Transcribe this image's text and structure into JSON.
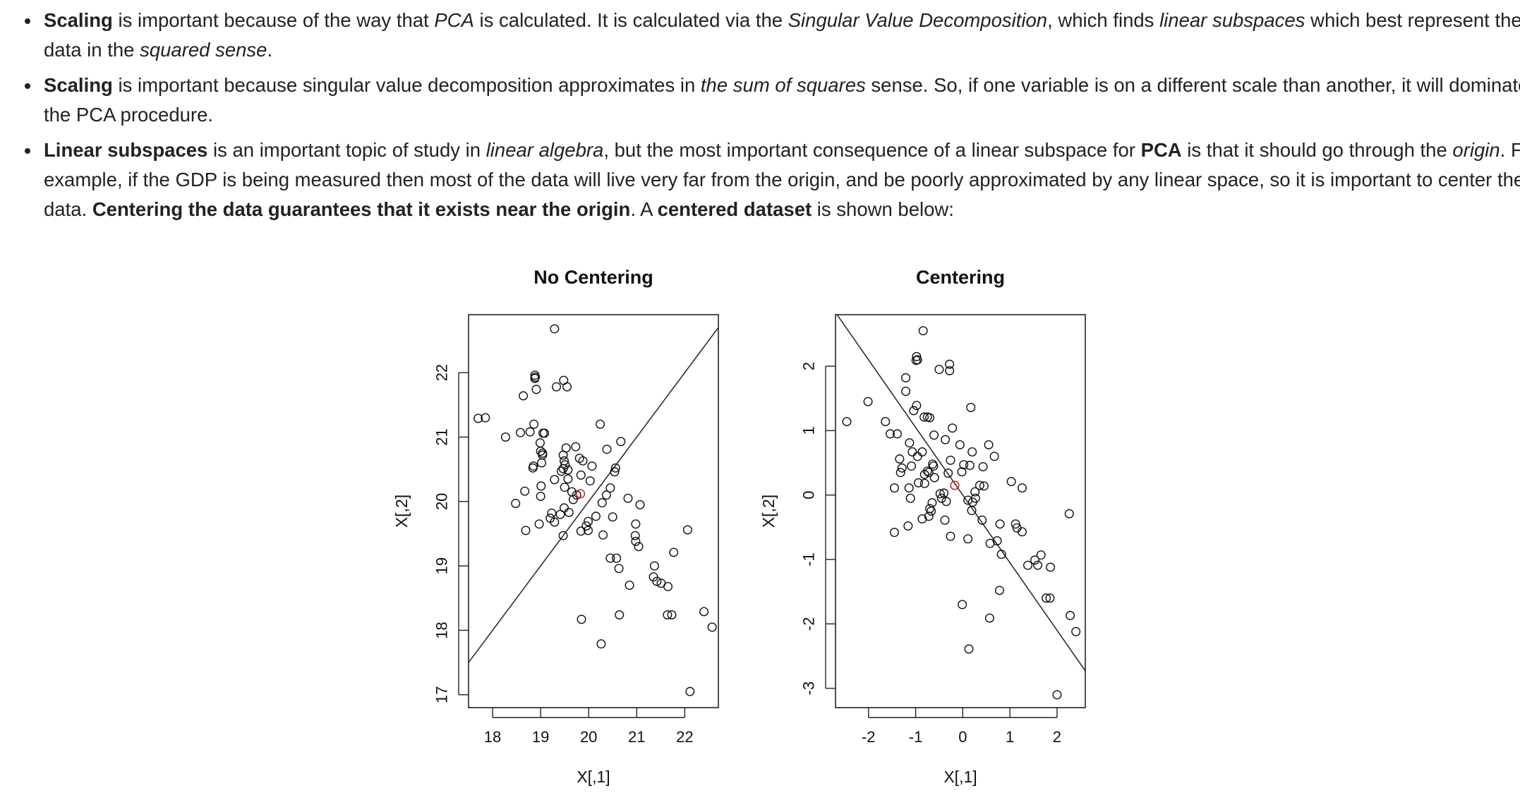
{
  "bullets": [
    {
      "segments": [
        {
          "t": "Scaling",
          "b": true
        },
        {
          "t": " is important because of the way that "
        },
        {
          "t": "PCA",
          "i": true
        },
        {
          "t": " is calculated. It is calculated via the "
        },
        {
          "t": "Singular Value Decomposition",
          "i": true
        },
        {
          "t": ", which finds "
        },
        {
          "t": "linear subspaces",
          "i": true
        },
        {
          "t": " which best represent the data in the "
        },
        {
          "t": "squared sense",
          "i": true
        },
        {
          "t": "."
        }
      ]
    },
    {
      "segments": [
        {
          "t": "Scaling",
          "b": true
        },
        {
          "t": " is important because singular value decomposition approximates in "
        },
        {
          "t": "the sum of squares",
          "i": true
        },
        {
          "t": " sense. So, if one variable is on a different scale than another, it will dominate the PCA procedure."
        }
      ]
    },
    {
      "segments": [
        {
          "t": "Linear subspaces",
          "b": true
        },
        {
          "t": " is an important topic of study in "
        },
        {
          "t": "linear algebra",
          "i": true
        },
        {
          "t": ", but the most important consequence of a linear subspace for "
        },
        {
          "t": "PCA",
          "b": true
        },
        {
          "t": " is that it should go through the "
        },
        {
          "t": "origin",
          "i": true
        },
        {
          "t": ". For example, if the GDP is being measured then most of the data will live very far from the origin, and be poorly approximated by any linear space, so it is important to center the data. "
        },
        {
          "t": "Centering the data guarantees that it exists near the origin",
          "b": true
        },
        {
          "t": ". A "
        },
        {
          "t": "centered dataset",
          "b": true
        },
        {
          "t": " is shown below:"
        }
      ]
    }
  ],
  "colors": {
    "text": "#222222",
    "points": "#111111",
    "mean_point": "#cc2222",
    "frame": "#222222"
  },
  "chart_data": [
    {
      "type": "scatter",
      "title": "No Centering",
      "xlabel": "X[,1]",
      "ylabel": "X[,2]",
      "xlim": [
        17.5,
        22.7
      ],
      "ylim": [
        16.8,
        22.9
      ],
      "xticks": [
        18,
        19,
        20,
        21,
        22
      ],
      "yticks": [
        17,
        18,
        19,
        20,
        21,
        22
      ],
      "grid": false,
      "line": {
        "slope": 1.0,
        "intercept": 0.0
      },
      "mean_point": {
        "x": 19.83,
        "y": 20.12
      },
      "points": [
        [
          19.29,
          22.68
        ],
        [
          18.88,
          21.96
        ],
        [
          18.89,
          21.93
        ],
        [
          18.88,
          21.91
        ],
        [
          19.48,
          21.88
        ],
        [
          19.55,
          21.78
        ],
        [
          19.33,
          21.78
        ],
        [
          18.91,
          21.74
        ],
        [
          18.64,
          21.64
        ],
        [
          17.7,
          21.29
        ],
        [
          17.85,
          21.3
        ],
        [
          18.86,
          21.2
        ],
        [
          18.58,
          21.07
        ],
        [
          18.78,
          21.08
        ],
        [
          19.05,
          21.06
        ],
        [
          19.08,
          21.06
        ],
        [
          18.27,
          21.0
        ],
        [
          18.99,
          20.91
        ],
        [
          19.04,
          20.75
        ],
        [
          19.0,
          20.78
        ],
        [
          19.04,
          20.72
        ],
        [
          19.73,
          20.85
        ],
        [
          19.53,
          20.83
        ],
        [
          20.24,
          21.2
        ],
        [
          20.67,
          20.93
        ],
        [
          20.38,
          20.81
        ],
        [
          19.47,
          20.72
        ],
        [
          19.49,
          20.63
        ],
        [
          19.81,
          20.67
        ],
        [
          19.88,
          20.63
        ],
        [
          19.02,
          20.6
        ],
        [
          19.51,
          20.57
        ],
        [
          18.85,
          20.55
        ],
        [
          18.84,
          20.52
        ],
        [
          19.47,
          20.51
        ],
        [
          19.43,
          20.47
        ],
        [
          19.57,
          20.49
        ],
        [
          20.56,
          20.52
        ],
        [
          20.07,
          20.55
        ],
        [
          20.54,
          20.46
        ],
        [
          19.84,
          20.41
        ],
        [
          19.29,
          20.34
        ],
        [
          19.5,
          20.22
        ],
        [
          19.57,
          20.35
        ],
        [
          20.03,
          20.32
        ],
        [
          20.45,
          20.21
        ],
        [
          19.01,
          20.24
        ],
        [
          18.67,
          20.16
        ],
        [
          19.65,
          20.15
        ],
        [
          19.75,
          20.1
        ],
        [
          19.68,
          20.03
        ],
        [
          20.37,
          20.1
        ],
        [
          20.28,
          19.98
        ],
        [
          20.82,
          20.05
        ],
        [
          21.07,
          19.95
        ],
        [
          19.0,
          20.08
        ],
        [
          18.48,
          19.97
        ],
        [
          19.49,
          19.9
        ],
        [
          19.59,
          19.83
        ],
        [
          19.23,
          19.82
        ],
        [
          19.41,
          19.8
        ],
        [
          19.2,
          19.74
        ],
        [
          20.15,
          19.77
        ],
        [
          20.5,
          19.76
        ],
        [
          19.29,
          19.68
        ],
        [
          19.99,
          19.69
        ],
        [
          19.95,
          19.62
        ],
        [
          19.84,
          19.54
        ],
        [
          19.99,
          19.55
        ],
        [
          18.97,
          19.65
        ],
        [
          18.69,
          19.55
        ],
        [
          19.47,
          19.47
        ],
        [
          20.3,
          19.48
        ],
        [
          20.98,
          19.65
        ],
        [
          20.97,
          19.47
        ],
        [
          20.98,
          19.38
        ],
        [
          21.04,
          19.3
        ],
        [
          22.06,
          19.56
        ],
        [
          20.58,
          19.12
        ],
        [
          20.45,
          19.12
        ],
        [
          20.63,
          18.96
        ],
        [
          21.77,
          19.21
        ],
        [
          21.37,
          19.0
        ],
        [
          21.35,
          18.83
        ],
        [
          21.42,
          18.76
        ],
        [
          21.51,
          18.73
        ],
        [
          21.65,
          18.68
        ],
        [
          20.85,
          18.7
        ],
        [
          19.85,
          18.17
        ],
        [
          20.64,
          18.24
        ],
        [
          21.64,
          18.24
        ],
        [
          21.73,
          18.24
        ],
        [
          22.4,
          18.29
        ],
        [
          22.57,
          18.05
        ],
        [
          20.26,
          17.79
        ],
        [
          22.11,
          17.05
        ]
      ]
    },
    {
      "type": "scatter",
      "title": "Centering",
      "xlabel": "X[,1]",
      "ylabel": "X[,2]",
      "xlim": [
        -2.7,
        2.6
      ],
      "ylim": [
        -3.3,
        2.8
      ],
      "xticks": [
        -2,
        -1,
        0,
        1,
        2
      ],
      "yticks": [
        -3,
        -2,
        -1,
        0,
        1,
        2
      ],
      "grid": false,
      "line": {
        "slope": -1.05,
        "intercept": 0.0
      },
      "mean_point": {
        "x": -0.17,
        "y": 0.15
      },
      "points": [
        [
          -0.84,
          2.55
        ],
        [
          -0.98,
          2.15
        ],
        [
          -0.96,
          2.1
        ],
        [
          -0.99,
          2.09
        ],
        [
          -0.5,
          1.95
        ],
        [
          -0.28,
          2.03
        ],
        [
          -0.28,
          1.93
        ],
        [
          -1.21,
          1.82
        ],
        [
          -1.21,
          1.61
        ],
        [
          -0.98,
          1.39
        ],
        [
          0.17,
          1.36
        ],
        [
          -2.01,
          1.45
        ],
        [
          -1.04,
          1.31
        ],
        [
          -0.82,
          1.21
        ],
        [
          -0.7,
          1.2
        ],
        [
          -0.75,
          1.21
        ],
        [
          -2.46,
          1.14
        ],
        [
          -1.64,
          1.14
        ],
        [
          -1.54,
          0.95
        ],
        [
          -1.39,
          0.95
        ],
        [
          -1.13,
          0.81
        ],
        [
          -1.07,
          0.67
        ],
        [
          -0.96,
          0.6
        ],
        [
          -0.61,
          0.93
        ],
        [
          -0.37,
          0.86
        ],
        [
          -0.22,
          1.04
        ],
        [
          -0.06,
          0.78
        ],
        [
          0.55,
          0.78
        ],
        [
          0.67,
          0.6
        ],
        [
          0.2,
          0.67
        ],
        [
          -1.34,
          0.56
        ],
        [
          -1.29,
          0.42
        ],
        [
          -1.32,
          0.35
        ],
        [
          -1.09,
          0.45
        ],
        [
          -0.86,
          0.67
        ],
        [
          -0.62,
          0.45
        ],
        [
          -0.26,
          0.54
        ],
        [
          0.02,
          0.47
        ],
        [
          0.15,
          0.46
        ],
        [
          0.43,
          0.44
        ],
        [
          -0.75,
          0.37
        ],
        [
          -0.72,
          0.35
        ],
        [
          -0.64,
          0.48
        ],
        [
          -0.81,
          0.32
        ],
        [
          -0.31,
          0.34
        ],
        [
          -0.02,
          0.36
        ],
        [
          1.03,
          0.21
        ],
        [
          1.26,
          0.11
        ],
        [
          -0.94,
          0.19
        ],
        [
          -0.81,
          0.18
        ],
        [
          -0.6,
          0.27
        ],
        [
          0.26,
          0.05
        ],
        [
          0.36,
          0.15
        ],
        [
          0.45,
          0.14
        ],
        [
          -1.45,
          0.11
        ],
        [
          -1.14,
          0.11
        ],
        [
          -0.4,
          0.03
        ],
        [
          -0.45,
          -0.05
        ],
        [
          -0.65,
          -0.12
        ],
        [
          -0.48,
          0.02
        ],
        [
          -0.7,
          -0.21
        ],
        [
          -0.67,
          -0.25
        ],
        [
          -0.72,
          -0.33
        ],
        [
          -0.35,
          -0.1
        ],
        [
          0.11,
          -0.08
        ],
        [
          0.21,
          -0.11
        ],
        [
          0.19,
          -0.24
        ],
        [
          0.27,
          -0.05
        ],
        [
          -1.11,
          -0.05
        ],
        [
          -1.45,
          -0.58
        ],
        [
          -1.16,
          -0.48
        ],
        [
          -0.86,
          -0.37
        ],
        [
          -0.38,
          -0.39
        ],
        [
          -0.26,
          -0.64
        ],
        [
          0.11,
          -0.68
        ],
        [
          0.41,
          -0.39
        ],
        [
          0.79,
          -0.45
        ],
        [
          0.73,
          -0.71
        ],
        [
          1.12,
          -0.45
        ],
        [
          1.15,
          -0.51
        ],
        [
          1.26,
          -0.57
        ],
        [
          2.26,
          -0.29
        ],
        [
          0.58,
          -0.75
        ],
        [
          0.82,
          -0.92
        ],
        [
          1.38,
          -1.09
        ],
        [
          1.53,
          -1.01
        ],
        [
          1.66,
          -0.93
        ],
        [
          1.59,
          -1.09
        ],
        [
          1.86,
          -1.12
        ],
        [
          0.78,
          -1.48
        ],
        [
          -0.01,
          -1.7
        ],
        [
          0.57,
          -1.91
        ],
        [
          1.77,
          -1.6
        ],
        [
          1.85,
          -1.6
        ],
        [
          2.28,
          -1.87
        ],
        [
          2.4,
          -2.12
        ],
        [
          0.13,
          -2.39
        ],
        [
          2.0,
          -3.1
        ]
      ]
    }
  ]
}
